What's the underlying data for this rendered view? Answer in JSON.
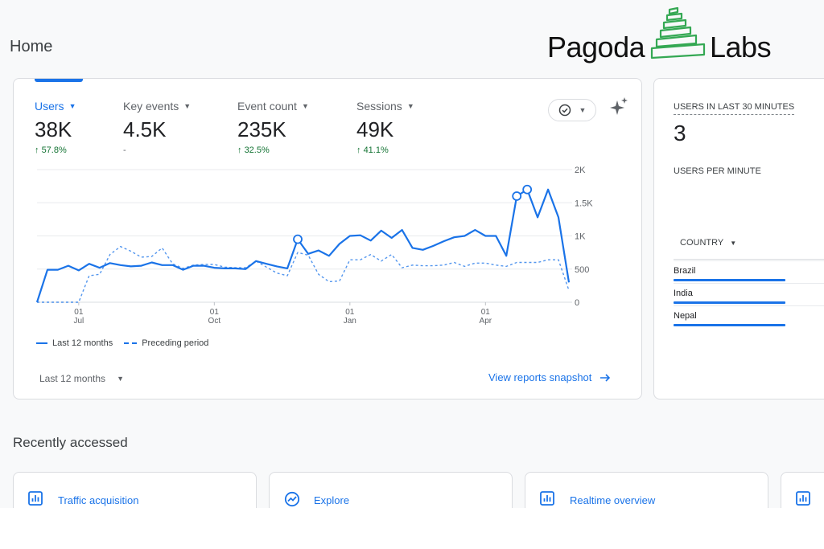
{
  "page": {
    "title": "Home"
  },
  "logo": {
    "left": "Pagoda",
    "right": "Labs"
  },
  "metrics": [
    {
      "label": "Users",
      "value": "38K",
      "delta": "57.8%",
      "active": true
    },
    {
      "label": "Key events",
      "value": "4.5K",
      "delta": "-",
      "active": false
    },
    {
      "label": "Event count",
      "value": "235K",
      "delta": "32.5%",
      "active": false
    },
    {
      "label": "Sessions",
      "value": "49K",
      "delta": "41.1%",
      "active": false
    }
  ],
  "icons": {
    "compare": "check-circle-icon",
    "insights": "sparkle-icon",
    "report": "bar-chart-icon",
    "explore": "explore-trend-icon",
    "link": "arrow-right-icon"
  },
  "chart_data": {
    "type": "line",
    "y_ticks": [
      "2K",
      "1.5K",
      "1K",
      "500",
      "0"
    ],
    "y_tick_values": [
      2000,
      1500,
      1000,
      500,
      0
    ],
    "ylim": [
      0,
      2000
    ],
    "x_ticks": [
      {
        "day": "01",
        "month": "Jul",
        "index": 4
      },
      {
        "day": "01",
        "month": "Oct",
        "index": 17
      },
      {
        "day": "01",
        "month": "Jan",
        "index": 30
      },
      {
        "day": "01",
        "month": "Apr",
        "index": 43
      }
    ],
    "series": [
      {
        "name": "Last 12 months",
        "style": "solid",
        "values": [
          0,
          490,
          490,
          550,
          480,
          580,
          520,
          590,
          560,
          540,
          550,
          600,
          560,
          560,
          490,
          550,
          550,
          520,
          510,
          510,
          500,
          620,
          580,
          540,
          510,
          950,
          730,
          780,
          700,
          880,
          1000,
          1010,
          930,
          1080,
          970,
          1090,
          820,
          790,
          850,
          920,
          980,
          1000,
          1090,
          1000,
          1000,
          700,
          1600,
          1700,
          1280,
          1700,
          1280,
          300
        ]
      },
      {
        "name": "Preceding period",
        "style": "dashed",
        "values": [
          0,
          0,
          0,
          0,
          0,
          400,
          420,
          720,
          840,
          770,
          680,
          690,
          820,
          580,
          510,
          560,
          570,
          570,
          530,
          520,
          520,
          620,
          530,
          440,
          400,
          750,
          710,
          420,
          310,
          320,
          640,
          640,
          720,
          620,
          720,
          520,
          560,
          550,
          550,
          560,
          600,
          540,
          590,
          590,
          560,
          540,
          600,
          600,
          600,
          640,
          640,
          180
        ]
      }
    ],
    "highlighted_points": [
      {
        "series": 0,
        "index": 25
      },
      {
        "series": 0,
        "index": 46
      },
      {
        "series": 0,
        "index": 47
      }
    ],
    "legend": [
      "Last 12 months",
      "Preceding period"
    ],
    "legend_position": "bottom-left",
    "grid": true,
    "colors": {
      "line": "#1a73e8",
      "grid": "#e8eaed"
    }
  },
  "footer": {
    "range_label": "Last 12 months",
    "snapshot_link": "View reports snapshot"
  },
  "realtime": {
    "title": "USERS IN LAST 30 MINUTES",
    "value": "3",
    "per_minute_label": "USERS PER MINUTE",
    "country_header": "COUNTRY",
    "countries": [
      "Brazil",
      "India",
      "Nepal"
    ]
  },
  "recent": {
    "title": "Recently accessed",
    "items": [
      "Traffic acquisition",
      "Explore",
      "Realtime overview"
    ]
  },
  "colors": {
    "accent": "#1a73e8",
    "positive": "#137333",
    "logo_green": "#34a853"
  }
}
